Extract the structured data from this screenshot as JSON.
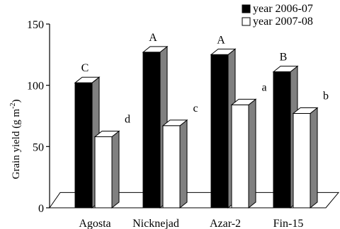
{
  "chart_data": {
    "type": "bar",
    "categories": [
      "Agosta",
      "Nicknejad",
      "Azar-2",
      "Fin-15"
    ],
    "series": [
      {
        "name": "year 2006-07",
        "values": [
          102,
          127,
          125,
          111
        ],
        "letters": [
          "C",
          "A",
          "A",
          "B"
        ],
        "color": "#000000"
      },
      {
        "name": "year 2007-08",
        "values": [
          58,
          67,
          84,
          77
        ],
        "letters": [
          "d",
          "c",
          "a",
          "b"
        ],
        "color": "#ffffff"
      }
    ],
    "ylabel_main": "Grain yield (g m",
    "ylabel_sup": "-2",
    "ylabel_close": ")",
    "yticks": [
      0,
      50,
      100,
      150
    ],
    "ylim": [
      0,
      150
    ],
    "legend_position": "top-right",
    "side_color": "#808080",
    "top_color": "#ffffff"
  }
}
